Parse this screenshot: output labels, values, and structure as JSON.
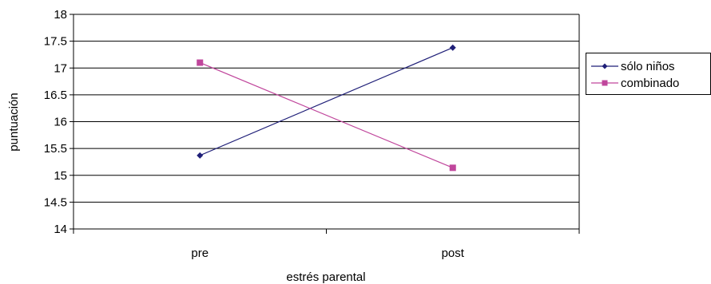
{
  "chart_data": {
    "type": "line",
    "categories": [
      "pre",
      "post"
    ],
    "series": [
      {
        "name": "sólo niños",
        "values": [
          15.37,
          17.38
        ],
        "color": "#1F1F78",
        "marker": "diamond"
      },
      {
        "name": "combinado",
        "values": [
          17.1,
          15.14
        ],
        "color": "#C0469C",
        "marker": "square"
      }
    ],
    "title": "",
    "xlabel": "estrés parental",
    "ylabel": "puntuación",
    "ylim": [
      14,
      18
    ],
    "yticks": [
      "14",
      "14.5",
      "15",
      "15.5",
      "16",
      "16.5",
      "17",
      "17.5",
      "18"
    ],
    "grid": true,
    "legend": "right"
  }
}
